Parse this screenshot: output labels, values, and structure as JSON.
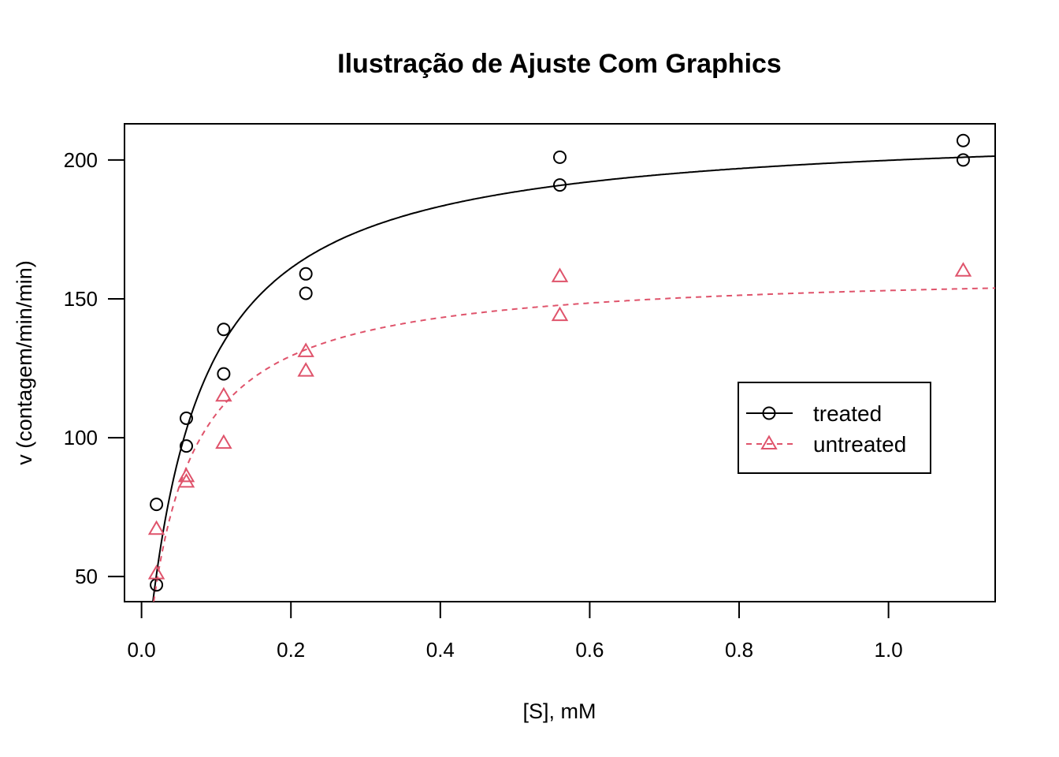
{
  "chart_data": {
    "type": "scatter",
    "title": "Ilustração de Ajuste Com Graphics",
    "xlabel": "[S], mM",
    "ylabel": "v (contagem/min/min)",
    "xlim": [
      -0.0228,
      1.1428
    ],
    "ylim": [
      40.96,
      213.04
    ],
    "xticks": [
      0.0,
      0.2,
      0.4,
      0.6,
      0.8,
      1.0
    ],
    "xtick_labels": [
      "0.0",
      "0.2",
      "0.4",
      "0.6",
      "0.8",
      "1.0"
    ],
    "yticks": [
      50,
      100,
      150,
      200
    ],
    "ytick_labels": [
      "50",
      "100",
      "150",
      "200"
    ],
    "grid": false,
    "legend_position": "right",
    "series": [
      {
        "name": "treated",
        "color": "#000000",
        "marker": "circle",
        "line": "solid",
        "points": [
          {
            "x": 0.02,
            "y": 76
          },
          {
            "x": 0.02,
            "y": 47
          },
          {
            "x": 0.06,
            "y": 97
          },
          {
            "x": 0.06,
            "y": 107
          },
          {
            "x": 0.11,
            "y": 123
          },
          {
            "x": 0.11,
            "y": 139
          },
          {
            "x": 0.22,
            "y": 159
          },
          {
            "x": 0.22,
            "y": 152
          },
          {
            "x": 0.56,
            "y": 191
          },
          {
            "x": 0.56,
            "y": 201
          },
          {
            "x": 1.1,
            "y": 207
          },
          {
            "x": 1.1,
            "y": 200
          }
        ],
        "fit": {
          "model": "Michaelis-Menten",
          "Vm": 212.7,
          "K": 0.06412
        }
      },
      {
        "name": "untreated",
        "color": "#DF536B",
        "marker": "triangle",
        "line": "dashed",
        "points": [
          {
            "x": 0.02,
            "y": 67
          },
          {
            "x": 0.02,
            "y": 51
          },
          {
            "x": 0.06,
            "y": 84
          },
          {
            "x": 0.06,
            "y": 86
          },
          {
            "x": 0.11,
            "y": 98
          },
          {
            "x": 0.11,
            "y": 115
          },
          {
            "x": 0.22,
            "y": 131
          },
          {
            "x": 0.22,
            "y": 124
          },
          {
            "x": 0.56,
            "y": 144
          },
          {
            "x": 0.56,
            "y": 158
          },
          {
            "x": 1.1,
            "y": 160
          }
        ],
        "fit": {
          "model": "Michaelis-Menten",
          "Vm": 160.3,
          "K": 0.04771
        }
      }
    ]
  }
}
